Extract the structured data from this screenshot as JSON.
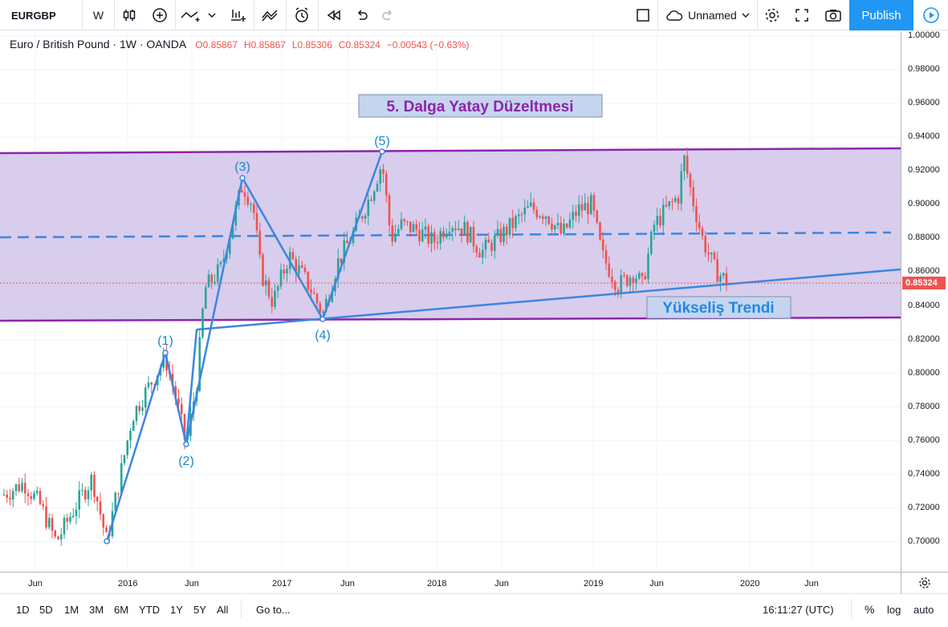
{
  "toolbar": {
    "symbol": "EURGBP",
    "interval": "W",
    "layout_name": "Unnamed",
    "publish_label": "Publish"
  },
  "legend": {
    "title": "Euro / British Pound · 1W · OANDA",
    "open": "O0.85867",
    "high": "H0.85867",
    "low": "L0.85306",
    "close": "C0.85324",
    "change": "−0.00543 (−0.63%)"
  },
  "annotations": {
    "title": "5. Dalga Yatay Düzeltmesi",
    "trend": "Yükseliş Trendi",
    "waves": [
      "(1)",
      "(2)",
      "(3)",
      "(4)",
      "(5)"
    ]
  },
  "price_axis": {
    "labels": [
      "1.00000",
      "0.98000",
      "0.96000",
      "0.94000",
      "0.92000",
      "0.90000",
      "0.88000",
      "0.86000",
      "0.84000",
      "0.82000",
      "0.80000",
      "0.78000",
      "0.76000",
      "0.74000",
      "0.72000",
      "0.70000"
    ],
    "current": "0.85324"
  },
  "time_axis": {
    "labels": [
      "Jun",
      "2016",
      "Jun",
      "2017",
      "Jun",
      "2018",
      "Jun",
      "2019",
      "Jun",
      "2020",
      "Jun"
    ]
  },
  "bottombar": {
    "ranges": [
      "1D",
      "5D",
      "1M",
      "3M",
      "6M",
      "YTD",
      "1Y",
      "5Y",
      "All"
    ],
    "goto": "Go to...",
    "clock": "16:11:27 (UTC)",
    "percent": "%",
    "log": "log",
    "auto": "auto"
  },
  "colors": {
    "up": "#26a69a",
    "down": "#ef5350",
    "channel": "#8e24aa",
    "trend": "#3d85e0",
    "fill": "#d1c4e9"
  },
  "chart_data": {
    "type": "candlestick",
    "symbol": "EURGBP",
    "interval": "1W",
    "ylim": [
      0.69,
      1.0
    ],
    "channel_upper": [
      0.93,
      0.933
    ],
    "channel_lower": [
      0.831,
      0.833
    ],
    "midline": 0.882,
    "waves": [
      {
        "label": "(1)",
        "price": 0.812
      },
      {
        "label": "(2)",
        "price": 0.757
      },
      {
        "label": "(3)",
        "price": 0.915
      },
      {
        "label": "(4)",
        "price": 0.832
      },
      {
        "label": "(5)",
        "price": 0.93
      }
    ],
    "last_close": 0.85324
  }
}
